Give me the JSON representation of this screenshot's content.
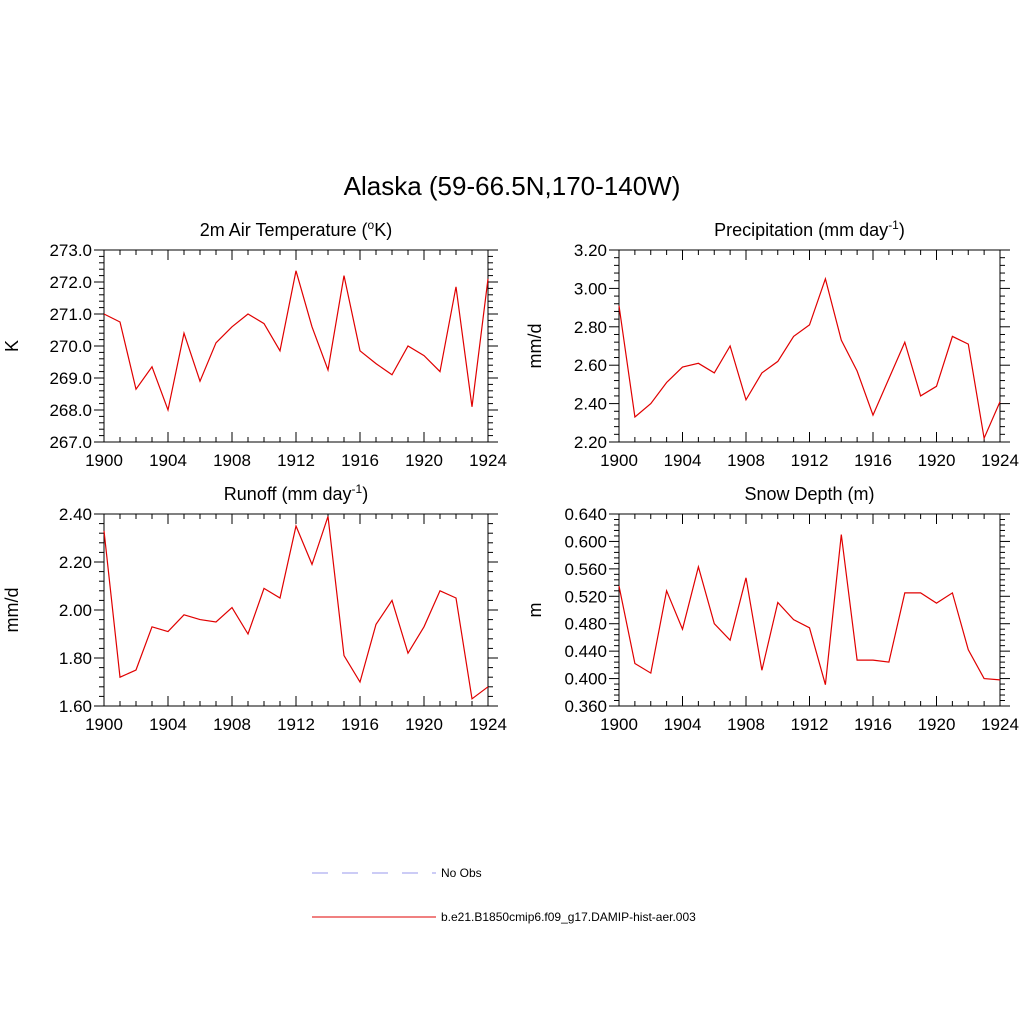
{
  "title": "Alaska (59-66.5N,170-140W)",
  "legend": {
    "entries": [
      {
        "label": "No Obs",
        "color": "#9999ee",
        "dash": true
      },
      {
        "label": "b.e21.B1850cmip6.f09_g17.DAMIP-hist-aer.003",
        "color": "#e00000",
        "dash": false
      }
    ]
  },
  "chart_data": [
    {
      "type": "line",
      "title": "2m Air Temperature (",
      "title_sup": "o",
      "title_tail": "K)",
      "ylabel": "K",
      "xlim": [
        1900,
        1924
      ],
      "ylim": [
        267.0,
        273.0
      ],
      "xticks": [
        1900,
        1904,
        1908,
        1912,
        1916,
        1920,
        1924
      ],
      "yticks": [
        "267.0",
        "268.0",
        "269.0",
        "270.0",
        "271.0",
        "272.0",
        "273.0"
      ],
      "color": "#e00000",
      "x": [
        1900,
        1901,
        1902,
        1903,
        1904,
        1905,
        1906,
        1907,
        1908,
        1909,
        1910,
        1911,
        1912,
        1913,
        1914,
        1915,
        1916,
        1917,
        1918,
        1919,
        1920,
        1921,
        1922,
        1923,
        1924
      ],
      "y": [
        271.0,
        270.75,
        268.65,
        269.35,
        268.0,
        270.4,
        268.9,
        270.1,
        270.6,
        271.0,
        270.7,
        269.85,
        272.35,
        270.6,
        269.25,
        272.2,
        269.85,
        269.45,
        269.1,
        270.0,
        269.7,
        269.2,
        271.85,
        268.1,
        272.1
      ]
    },
    {
      "type": "line",
      "title": "Precipitation (mm day",
      "title_sup": "-1",
      "title_tail": ")",
      "ylabel": "mm/d",
      "xlim": [
        1900,
        1924
      ],
      "ylim": [
        2.2,
        3.2
      ],
      "xticks": [
        1900,
        1904,
        1908,
        1912,
        1916,
        1920,
        1924
      ],
      "yticks": [
        "2.20",
        "2.40",
        "2.60",
        "2.80",
        "3.00",
        "3.20"
      ],
      "color": "#e00000",
      "x": [
        1900,
        1901,
        1902,
        1903,
        1904,
        1905,
        1906,
        1907,
        1908,
        1909,
        1910,
        1911,
        1912,
        1913,
        1914,
        1915,
        1916,
        1917,
        1918,
        1919,
        1920,
        1921,
        1922,
        1923,
        1924
      ],
      "y": [
        2.91,
        2.33,
        2.4,
        2.51,
        2.59,
        2.61,
        2.56,
        2.7,
        2.42,
        2.56,
        2.62,
        2.75,
        2.81,
        3.05,
        2.73,
        2.57,
        2.34,
        2.53,
        2.72,
        2.44,
        2.49,
        2.75,
        2.71,
        2.22,
        2.41
      ]
    },
    {
      "type": "line",
      "title": "Runoff (mm day",
      "title_sup": "-1",
      "title_tail": ")",
      "ylabel": "mm/d",
      "xlim": [
        1900,
        1924
      ],
      "ylim": [
        1.6,
        2.4
      ],
      "xticks": [
        1900,
        1904,
        1908,
        1912,
        1916,
        1920,
        1924
      ],
      "yticks": [
        "1.60",
        "1.80",
        "2.00",
        "2.20",
        "2.40"
      ],
      "color": "#e00000",
      "x": [
        1900,
        1901,
        1902,
        1903,
        1904,
        1905,
        1906,
        1907,
        1908,
        1909,
        1910,
        1911,
        1912,
        1913,
        1914,
        1915,
        1916,
        1917,
        1918,
        1919,
        1920,
        1921,
        1922,
        1923,
        1924
      ],
      "y": [
        2.33,
        1.72,
        1.75,
        1.93,
        1.91,
        1.98,
        1.96,
        1.95,
        2.01,
        1.9,
        2.09,
        2.05,
        2.35,
        2.19,
        2.39,
        1.81,
        1.7,
        1.94,
        2.04,
        1.82,
        1.93,
        2.08,
        2.05,
        1.63,
        1.68
      ]
    },
    {
      "type": "line",
      "title": "Snow Depth (m)",
      "title_sup": "",
      "title_tail": "",
      "ylabel": "m",
      "xlim": [
        1900,
        1924
      ],
      "ylim": [
        0.36,
        0.64
      ],
      "xticks": [
        1900,
        1904,
        1908,
        1912,
        1916,
        1920,
        1924
      ],
      "yticks": [
        "0.360",
        "0.400",
        "0.440",
        "0.480",
        "0.520",
        "0.560",
        "0.600",
        "0.640"
      ],
      "color": "#e00000",
      "x": [
        1900,
        1901,
        1902,
        1903,
        1904,
        1905,
        1906,
        1907,
        1908,
        1909,
        1910,
        1911,
        1912,
        1913,
        1914,
        1915,
        1916,
        1917,
        1918,
        1919,
        1920,
        1921,
        1922,
        1923,
        1924
      ],
      "y": [
        0.535,
        0.422,
        0.408,
        0.528,
        0.472,
        0.563,
        0.48,
        0.456,
        0.547,
        0.412,
        0.511,
        0.486,
        0.474,
        0.391,
        0.61,
        0.427,
        0.427,
        0.424,
        0.525,
        0.525,
        0.51,
        0.525,
        0.442,
        0.4,
        0.398
      ]
    }
  ]
}
